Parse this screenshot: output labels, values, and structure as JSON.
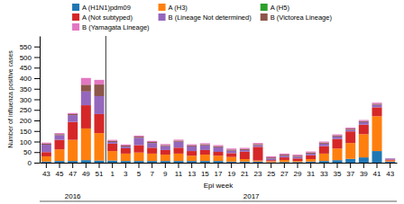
{
  "chart_data": {
    "type": "bar",
    "stacked": true,
    "grid": false,
    "legend": "top",
    "xlabel": "Epi week",
    "ylabel": "Number of influenza positive cases",
    "categories": [
      "43",
      "45",
      "47",
      "49",
      "51",
      "1",
      "3",
      "5",
      "7",
      "9",
      "11",
      "13",
      "15",
      "17",
      "19",
      "21",
      "23",
      "25",
      "27",
      "29",
      "31",
      "33",
      "35",
      "37",
      "39",
      "41",
      "43"
    ],
    "series": [
      {
        "name": "A (H1N1)pdm09",
        "values": [
          5,
          8,
          8,
          12,
          10,
          10,
          8,
          8,
          8,
          8,
          8,
          8,
          8,
          8,
          5,
          5,
          5,
          2,
          3,
          3,
          5,
          8,
          12,
          18,
          25,
          55,
          5
        ]
      },
      {
        "name": "A (H3)",
        "values": [
          25,
          55,
          100,
          150,
          130,
          45,
          35,
          40,
          35,
          30,
          35,
          25,
          30,
          25,
          22,
          12,
          5,
          5,
          10,
          5,
          12,
          35,
          55,
          75,
          110,
          165,
          5
        ]
      },
      {
        "name": "A (H5)",
        "values": [
          0,
          0,
          0,
          0,
          0,
          0,
          0,
          0,
          0,
          0,
          0,
          0,
          0,
          0,
          0,
          0,
          0,
          0,
          0,
          0,
          0,
          0,
          0,
          0,
          0,
          0,
          0
        ]
      },
      {
        "name": "A (Not subtyped)",
        "values": [
          20,
          45,
          85,
          110,
          90,
          35,
          25,
          35,
          28,
          22,
          28,
          22,
          22,
          18,
          18,
          35,
          65,
          5,
          12,
          12,
          18,
          35,
          45,
          55,
          45,
          42,
          5
        ]
      },
      {
        "name": "B (Lineage Not determined)",
        "values": [
          35,
          22,
          32,
          65,
          85,
          8,
          8,
          35,
          22,
          18,
          28,
          22,
          22,
          22,
          12,
          8,
          8,
          8,
          8,
          8,
          8,
          12,
          12,
          8,
          12,
          12,
          5
        ]
      },
      {
        "name": "B (Victorea Lineage)",
        "values": [
          5,
          5,
          5,
          32,
          55,
          5,
          5,
          5,
          5,
          5,
          5,
          5,
          5,
          5,
          5,
          5,
          5,
          5,
          5,
          5,
          5,
          5,
          5,
          5,
          5,
          5,
          0
        ]
      },
      {
        "name": "B (Yamagata Lineage)",
        "values": [
          5,
          5,
          5,
          32,
          22,
          5,
          5,
          5,
          5,
          5,
          5,
          5,
          5,
          5,
          5,
          5,
          5,
          5,
          5,
          5,
          5,
          5,
          5,
          5,
          5,
          5,
          0
        ]
      }
    ],
    "ylim": [
      0,
      600
    ],
    "yticks": [
      0,
      50,
      100,
      150,
      200,
      250,
      300,
      350,
      400,
      450,
      500,
      550
    ],
    "annotations": [
      {
        "text": "2016"
      },
      {
        "text": "2017"
      }
    ]
  }
}
